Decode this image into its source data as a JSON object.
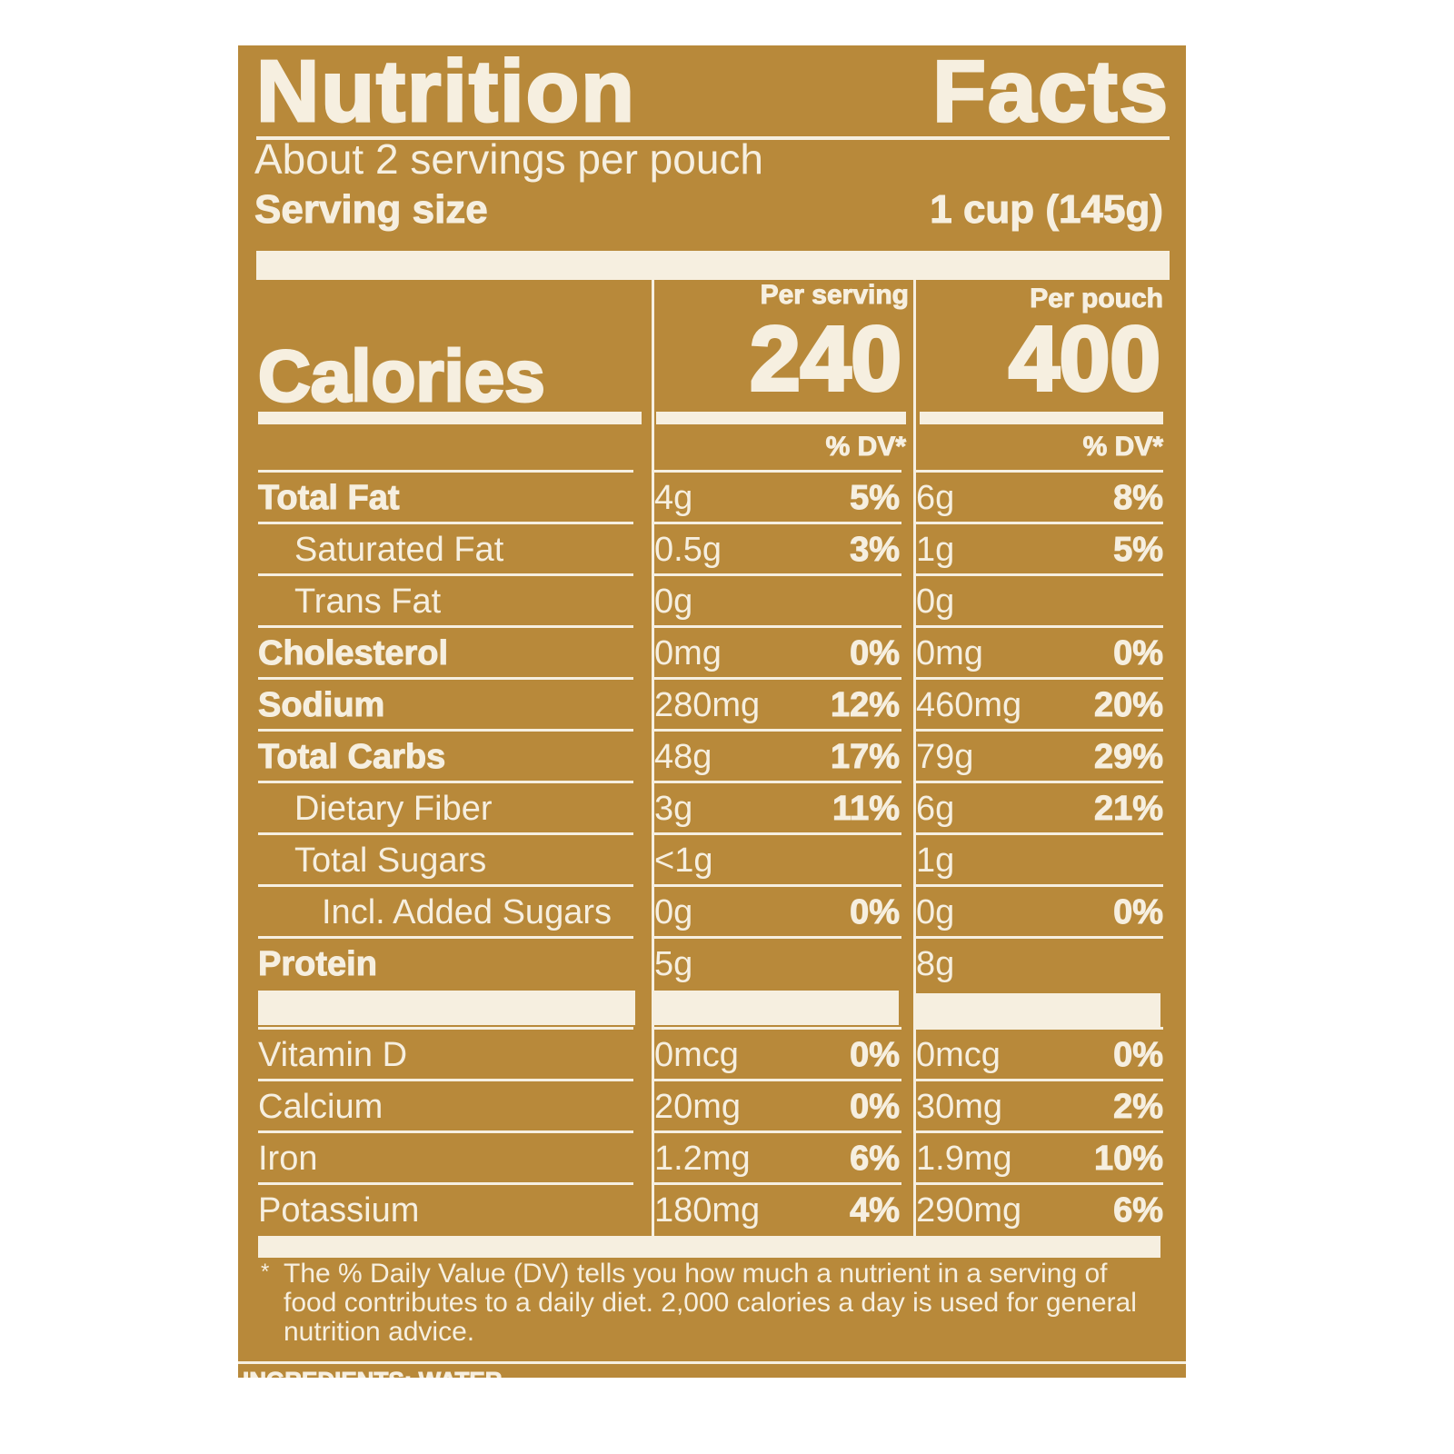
{
  "title_left": "Nutrition",
  "title_right": "Facts",
  "servings": "About 2 servings per pouch",
  "serving_size_label": "Serving size",
  "serving_size_value": "1 cup (145g)",
  "per_serving_label": "Per serving",
  "per_pouch_label": "Per pouch",
  "calories_label": "Calories",
  "calories_serving": "240",
  "calories_pouch": "400",
  "dv_label": "% DV*",
  "nutrients": [
    {
      "name": "Total Fat",
      "bold": true,
      "indent": 0,
      "s_amt": "4g",
      "s_dv": "5%",
      "p_amt": "6g",
      "p_dv": "8%"
    },
    {
      "name": "Saturated Fat",
      "bold": false,
      "indent": 1,
      "s_amt": "0.5g",
      "s_dv": "3%",
      "p_amt": "1g",
      "p_dv": "5%"
    },
    {
      "name": "Trans Fat",
      "bold": false,
      "indent": 1,
      "s_amt": "0g",
      "s_dv": "",
      "p_amt": "0g",
      "p_dv": ""
    },
    {
      "name": "Cholesterol",
      "bold": true,
      "indent": 0,
      "s_amt": "0mg",
      "s_dv": "0%",
      "p_amt": "0mg",
      "p_dv": "0%"
    },
    {
      "name": "Sodium",
      "bold": true,
      "indent": 0,
      "s_amt": "280mg",
      "s_dv": "12%",
      "p_amt": "460mg",
      "p_dv": "20%"
    },
    {
      "name": "Total Carbs",
      "bold": true,
      "indent": 0,
      "s_amt": "48g",
      "s_dv": "17%",
      "p_amt": "79g",
      "p_dv": "29%"
    },
    {
      "name": "Dietary Fiber",
      "bold": false,
      "indent": 1,
      "s_amt": "3g",
      "s_dv": "11%",
      "p_amt": "6g",
      "p_dv": "21%"
    },
    {
      "name": "Total Sugars",
      "bold": false,
      "indent": 1,
      "s_amt": "<1g",
      "s_dv": "",
      "p_amt": "1g",
      "p_dv": ""
    },
    {
      "name": "Incl. Added Sugars",
      "bold": false,
      "indent": 2,
      "s_amt": "0g",
      "s_dv": "0%",
      "p_amt": "0g",
      "p_dv": "0%"
    },
    {
      "name": "Protein",
      "bold": true,
      "indent": 0,
      "s_amt": "5g",
      "s_dv": "",
      "p_amt": "8g",
      "p_dv": ""
    }
  ],
  "vitamins": [
    {
      "name": "Vitamin D",
      "s_amt": "0mcg",
      "s_dv": "0%",
      "p_amt": "0mcg",
      "p_dv": "0%"
    },
    {
      "name": "Calcium",
      "s_amt": "20mg",
      "s_dv": "0%",
      "p_amt": "30mg",
      "p_dv": "2%"
    },
    {
      "name": "Iron",
      "s_amt": "1.2mg",
      "s_dv": "6%",
      "p_amt": "1.9mg",
      "p_dv": "10%"
    },
    {
      "name": "Potassium",
      "s_amt": "180mg",
      "s_dv": "4%",
      "p_amt": "290mg",
      "p_dv": "6%"
    }
  ],
  "footnote": "The % Daily Value (DV) tells you how much a nutrient in a serving of food contributes to a daily diet. 2,000 calories a day is used for general nutrition advice.",
  "footnote_mark": "*",
  "ingredients_partial": "INGREDIENTS: WATER",
  "colors": {
    "background": "#b8893a",
    "text": "#f6efe0"
  }
}
